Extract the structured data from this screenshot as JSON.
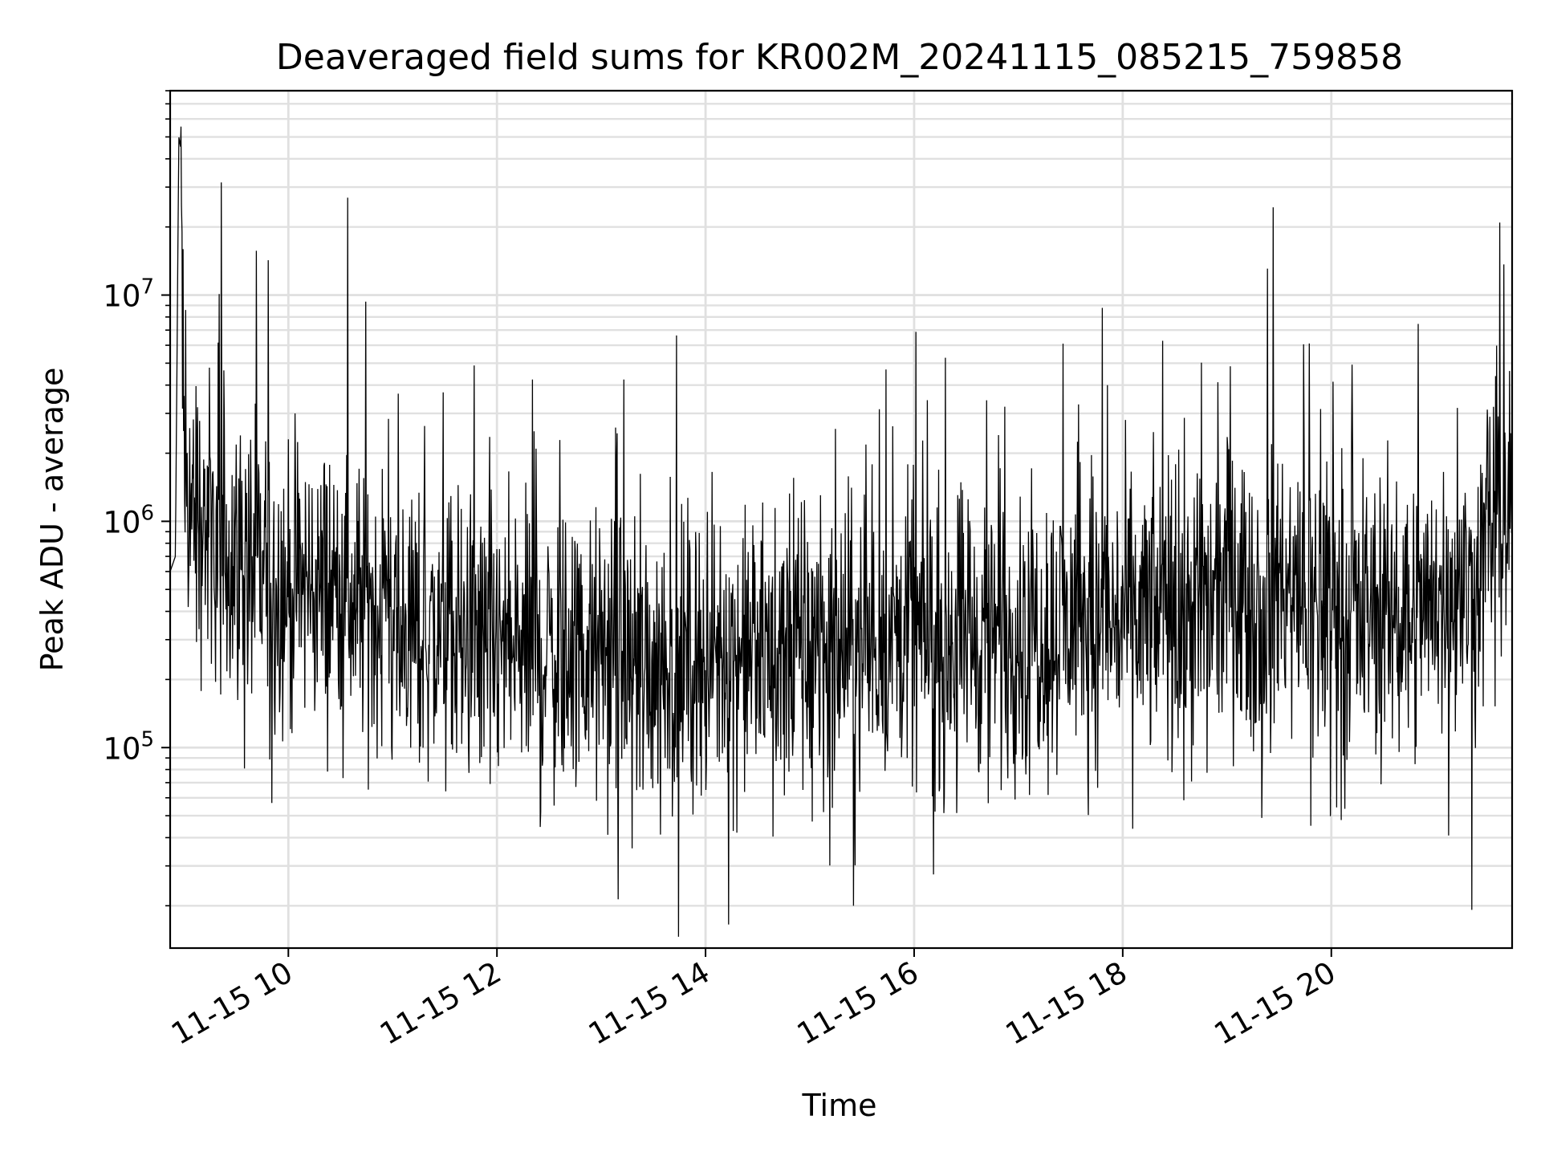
{
  "chart_data": {
    "type": "line",
    "title": "Deaveraged field sums for KR002M_20241115_085215_759858",
    "xlabel": "Time",
    "ylabel": "Peak ADU - average",
    "y_scale": "log",
    "grid": true,
    "line_color": "#000000",
    "grid_color": "#e0e0e0",
    "xlim": [
      "2024-11-15T08:52",
      "2024-11-15T21:44"
    ],
    "ylim": [
      13000,
      80000000
    ],
    "x_ticks": [
      {
        "value": "2024-11-15T10:00",
        "label": "11-15 10"
      },
      {
        "value": "2024-11-15T12:00",
        "label": "11-15 12"
      },
      {
        "value": "2024-11-15T14:00",
        "label": "11-15 14"
      },
      {
        "value": "2024-11-15T16:00",
        "label": "11-15 16"
      },
      {
        "value": "2024-11-15T18:00",
        "label": "11-15 18"
      },
      {
        "value": "2024-11-15T20:00",
        "label": "11-15 20"
      }
    ],
    "y_ticks": [
      {
        "value": 100000,
        "base": "10",
        "exp": "5"
      },
      {
        "value": 1000000,
        "base": "10",
        "exp": "6"
      },
      {
        "value": 10000000,
        "base": "10",
        "exp": "7"
      }
    ],
    "series": [
      {
        "x": [
          "2024-11-15T08:52",
          "2024-11-15T08:55",
          "2024-11-15T08:57",
          "2024-11-15T08:58",
          "2024-11-15T09:00",
          "2024-11-15T09:05",
          "2024-11-15T09:10",
          "2024-11-15T09:15",
          "2024-11-15T09:20",
          "2024-11-15T09:30",
          "2024-11-15T09:40",
          "2024-11-15T09:50",
          "2024-11-15T10:00",
          "2024-11-15T10:15",
          "2024-11-15T10:30",
          "2024-11-15T10:45",
          "2024-11-15T11:00",
          "2024-11-15T11:15",
          "2024-11-15T11:30",
          "2024-11-15T11:45",
          "2024-11-15T12:00",
          "2024-11-15T12:30",
          "2024-11-15T13:00",
          "2024-11-15T13:30",
          "2024-11-15T14:00",
          "2024-11-15T14:30",
          "2024-11-15T15:00",
          "2024-11-15T15:30",
          "2024-11-15T16:00",
          "2024-11-15T16:30",
          "2024-11-15T17:00",
          "2024-11-15T17:30",
          "2024-11-15T18:00",
          "2024-11-15T18:30",
          "2024-11-15T19:00",
          "2024-11-15T19:30",
          "2024-11-15T20:00",
          "2024-11-15T20:30",
          "2024-11-15T21:00",
          "2024-11-15T21:20",
          "2024-11-15T21:35",
          "2024-11-15T21:44"
        ],
        "y": [
          600000,
          700000,
          50000000,
          45000000,
          1400000,
          1200000,
          1000000,
          900000,
          800000,
          700000,
          600000,
          550000,
          500000,
          520000,
          480000,
          420000,
          380000,
          320000,
          300000,
          280000,
          270000,
          260000,
          250000,
          240000,
          250000,
          260000,
          270000,
          290000,
          320000,
          300000,
          330000,
          350000,
          370000,
          400000,
          450000,
          480000,
          420000,
          400000,
          420000,
          500000,
          1200000,
          1400000
        ]
      }
    ]
  }
}
